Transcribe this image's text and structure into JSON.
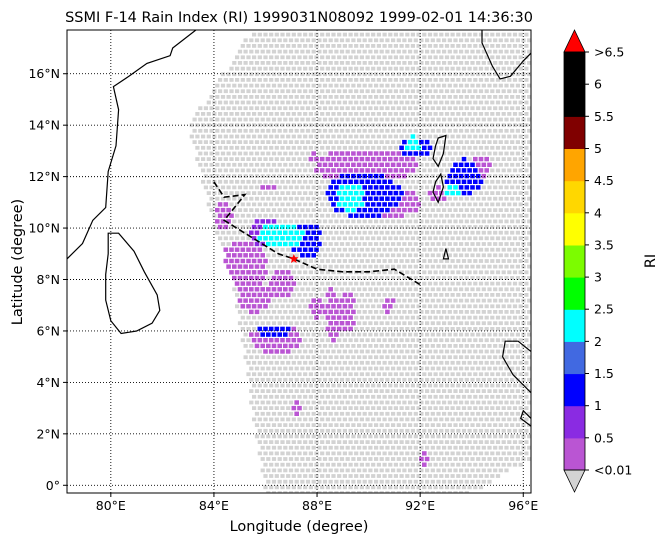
{
  "title": "SSMI F-14 Rain Index (RI) 1999031N08092 1999-02-01 14:36:30",
  "xlabel": "Longitude (degree)",
  "ylabel": "Latitude (degree)",
  "colorbar_label": "RI",
  "chart_data": {
    "type": "heatmap",
    "xlim": [
      78.3,
      96.3
    ],
    "ylim": [
      -0.3,
      17.7
    ],
    "x_ticks": [
      {
        "value": 80,
        "label": "80°E"
      },
      {
        "value": 84,
        "label": "84°E"
      },
      {
        "value": 88,
        "label": "88°E"
      },
      {
        "value": 92,
        "label": "92°E"
      },
      {
        "value": 96,
        "label": "96°E"
      }
    ],
    "y_ticks": [
      {
        "value": 0,
        "label": "0°"
      },
      {
        "value": 2,
        "label": "2°N"
      },
      {
        "value": 4,
        "label": "4°N"
      },
      {
        "value": 6,
        "label": "6°N"
      },
      {
        "value": 8,
        "label": "8°N"
      },
      {
        "value": 10,
        "label": "10°N"
      },
      {
        "value": 12,
        "label": "12°N"
      },
      {
        "value": 14,
        "label": "14°N"
      },
      {
        "value": 16,
        "label": "16°N"
      }
    ],
    "grid": true,
    "storm_center": [
      87.1,
      8.8
    ],
    "storm_track": [
      [
        84.0,
        11.8
      ],
      [
        84.4,
        11.2
      ],
      [
        85.2,
        11.3
      ],
      [
        84.4,
        10.3
      ],
      [
        85.2,
        9.8
      ],
      [
        86.5,
        9.0
      ],
      [
        87.1,
        8.8
      ],
      [
        88.0,
        8.4
      ],
      [
        89.0,
        8.3
      ],
      [
        90.0,
        8.3
      ],
      [
        91.0,
        8.4
      ],
      [
        92.0,
        7.8
      ]
    ],
    "swath_boundary": [
      [
        83.0,
        14.0
      ],
      [
        85.5,
        17.7
      ],
      [
        96.3,
        17.7
      ],
      [
        96.3,
        1.0
      ],
      [
        94.0,
        -0.3
      ],
      [
        86.0,
        -0.3
      ],
      [
        84.7,
        8.0
      ],
      [
        84.0,
        10.0
      ],
      [
        83.0,
        14.0
      ]
    ],
    "colorbar": {
      "boundaries": [
        0.01,
        0.5,
        1,
        1.5,
        2,
        2.5,
        3,
        3.5,
        4,
        4.5,
        5,
        5.5,
        6,
        6.5
      ],
      "colors": [
        "#ba55d3",
        "#8a2be2",
        "#0000ff",
        "#4169e1",
        "#00ffff",
        "#00ff00",
        "#7cfc00",
        "#ffff00",
        "#ffd700",
        "#ffa500",
        "#800000",
        "#000000",
        "#000000"
      ],
      "under_color": "#d3d3d3",
      "over_color": "#ff0000",
      "tick_labels": [
        {
          "value": 0.01,
          "label": "<0.01"
        },
        {
          "value": 0.5,
          "label": "0.5"
        },
        {
          "value": 1,
          "label": "1"
        },
        {
          "value": 1.5,
          "label": "1.5"
        },
        {
          "value": 2,
          "label": "2"
        },
        {
          "value": 2.5,
          "label": "2.5"
        },
        {
          "value": 3,
          "label": "3"
        },
        {
          "value": 3.5,
          "label": "3.5"
        },
        {
          "value": 4,
          "label": "4"
        },
        {
          "value": 4.5,
          "label": "4.5"
        },
        {
          "value": 5,
          "label": "5"
        },
        {
          "value": 5.5,
          "label": "5.5"
        },
        {
          "value": 6,
          "label": "6"
        },
        {
          "value": 6.5,
          "label": ">6.5"
        }
      ]
    },
    "rain_cells": [
      {
        "lon": 86.6,
        "lat": 9.7,
        "ri": 2.2,
        "rx": 0.9,
        "ry": 0.5
      },
      {
        "lon": 87.6,
        "lat": 9.5,
        "ri": 1.1,
        "rx": 0.6,
        "ry": 0.7
      },
      {
        "lon": 86.0,
        "lat": 9.8,
        "ri": 0.6,
        "rx": 0.6,
        "ry": 0.6
      },
      {
        "lon": 85.2,
        "lat": 8.6,
        "ri": 0.3,
        "rx": 0.9,
        "ry": 1.0
      },
      {
        "lon": 84.4,
        "lat": 10.5,
        "ri": 0.3,
        "rx": 0.3,
        "ry": 0.6
      },
      {
        "lon": 86.7,
        "lat": 7.8,
        "ri": 0.3,
        "rx": 0.5,
        "ry": 0.6
      },
      {
        "lon": 86.4,
        "lat": 6.0,
        "ri": 1.2,
        "rx": 0.7,
        "ry": 0.25
      },
      {
        "lon": 86.4,
        "lat": 5.7,
        "ri": 0.3,
        "rx": 1.0,
        "ry": 0.6
      },
      {
        "lon": 85.6,
        "lat": 7.3,
        "ri": 0.3,
        "rx": 0.7,
        "ry": 0.6
      },
      {
        "lon": 89.3,
        "lat": 11.2,
        "ri": 2.2,
        "rx": 0.5,
        "ry": 0.6
      },
      {
        "lon": 89.8,
        "lat": 11.3,
        "ri": 1.1,
        "rx": 1.5,
        "ry": 0.9
      },
      {
        "lon": 89.9,
        "lat": 12.4,
        "ri": 0.3,
        "rx": 2.0,
        "ry": 0.7
      },
      {
        "lon": 91.0,
        "lat": 11.0,
        "ri": 0.3,
        "rx": 1.0,
        "ry": 0.6
      },
      {
        "lon": 91.7,
        "lat": 13.3,
        "ri": 2.2,
        "rx": 0.3,
        "ry": 0.3
      },
      {
        "lon": 91.8,
        "lat": 13.1,
        "ri": 1.1,
        "rx": 0.6,
        "ry": 0.4
      },
      {
        "lon": 93.3,
        "lat": 11.5,
        "ri": 2.2,
        "rx": 0.3,
        "ry": 0.3
      },
      {
        "lon": 93.7,
        "lat": 12.0,
        "ri": 1.1,
        "rx": 0.7,
        "ry": 0.7
      },
      {
        "lon": 94.3,
        "lat": 12.4,
        "ri": 0.3,
        "rx": 0.4,
        "ry": 0.5
      },
      {
        "lon": 92.7,
        "lat": 11.3,
        "ri": 0.3,
        "rx": 0.5,
        "ry": 0.3
      },
      {
        "lon": 88.6,
        "lat": 6.6,
        "ri": 0.3,
        "rx": 0.3,
        "ry": 1.1
      },
      {
        "lon": 89.2,
        "lat": 6.7,
        "ri": 0.3,
        "rx": 0.3,
        "ry": 0.8
      },
      {
        "lon": 88.0,
        "lat": 6.9,
        "ri": 0.3,
        "rx": 0.3,
        "ry": 0.4
      },
      {
        "lon": 90.8,
        "lat": 7.0,
        "ri": 0.3,
        "rx": 0.2,
        "ry": 0.3
      },
      {
        "lon": 86.1,
        "lat": 11.6,
        "ri": 0.3,
        "rx": 0.3,
        "ry": 0.2
      },
      {
        "lon": 87.9,
        "lat": 12.8,
        "ri": 0.3,
        "rx": 0.2,
        "ry": 0.2
      },
      {
        "lon": 87.2,
        "lat": 3.0,
        "ri": 0.3,
        "rx": 0.15,
        "ry": 0.3
      },
      {
        "lon": 92.2,
        "lat": 1.0,
        "ri": 0.3,
        "rx": 0.2,
        "ry": 0.3
      }
    ],
    "coastlines": {
      "india": [
        [
          78.3,
          8.8
        ],
        [
          78.9,
          9.4
        ],
        [
          79.3,
          10.3
        ],
        [
          79.8,
          10.8
        ],
        [
          79.9,
          12.2
        ],
        [
          80.2,
          13.2
        ],
        [
          80.3,
          14.6
        ],
        [
          80.1,
          15.5
        ],
        [
          80.7,
          15.9
        ],
        [
          81.4,
          16.4
        ],
        [
          82.3,
          16.7
        ],
        [
          82.4,
          17.0
        ],
        [
          83.3,
          17.7
        ]
      ],
      "sri_lanka": [
        [
          79.9,
          9.8
        ],
        [
          80.3,
          9.8
        ],
        [
          80.9,
          9.1
        ],
        [
          81.3,
          8.3
        ],
        [
          81.8,
          7.4
        ],
        [
          81.9,
          6.8
        ],
        [
          81.6,
          6.3
        ],
        [
          81.0,
          6.0
        ],
        [
          80.4,
          5.9
        ],
        [
          80.0,
          6.4
        ],
        [
          79.8,
          7.2
        ],
        [
          79.8,
          8.2
        ],
        [
          79.9,
          9.0
        ],
        [
          79.9,
          9.8
        ]
      ],
      "myanmar": [
        [
          94.4,
          17.7
        ],
        [
          94.4,
          17.2
        ],
        [
          94.8,
          16.3
        ],
        [
          95.1,
          15.8
        ],
        [
          95.5,
          15.9
        ],
        [
          96.0,
          16.5
        ],
        [
          96.3,
          16.8
        ]
      ],
      "sumatra": [
        [
          96.3,
          5.2
        ],
        [
          95.8,
          5.6
        ],
        [
          95.3,
          5.6
        ],
        [
          95.2,
          5.0
        ],
        [
          95.6,
          4.3
        ],
        [
          96.3,
          3.6
        ]
      ],
      "andaman_north": [
        [
          92.7,
          13.5
        ],
        [
          93.0,
          13.6
        ],
        [
          92.9,
          12.9
        ],
        [
          92.7,
          12.4
        ],
        [
          92.5,
          12.7
        ],
        [
          92.6,
          13.2
        ],
        [
          92.7,
          13.5
        ]
      ],
      "andaman_south": [
        [
          92.8,
          12.1
        ],
        [
          92.9,
          11.6
        ],
        [
          92.7,
          11.0
        ],
        [
          92.5,
          11.4
        ],
        [
          92.6,
          11.8
        ],
        [
          92.8,
          12.1
        ]
      ],
      "nicobar": [
        [
          93.0,
          9.2
        ],
        [
          93.1,
          8.8
        ],
        [
          92.9,
          8.8
        ],
        [
          93.0,
          9.2
        ]
      ],
      "islands": [
        [
          96.3,
          2.6
        ],
        [
          96.0,
          2.9
        ],
        [
          95.9,
          2.6
        ],
        [
          96.3,
          2.3
        ]
      ]
    }
  }
}
